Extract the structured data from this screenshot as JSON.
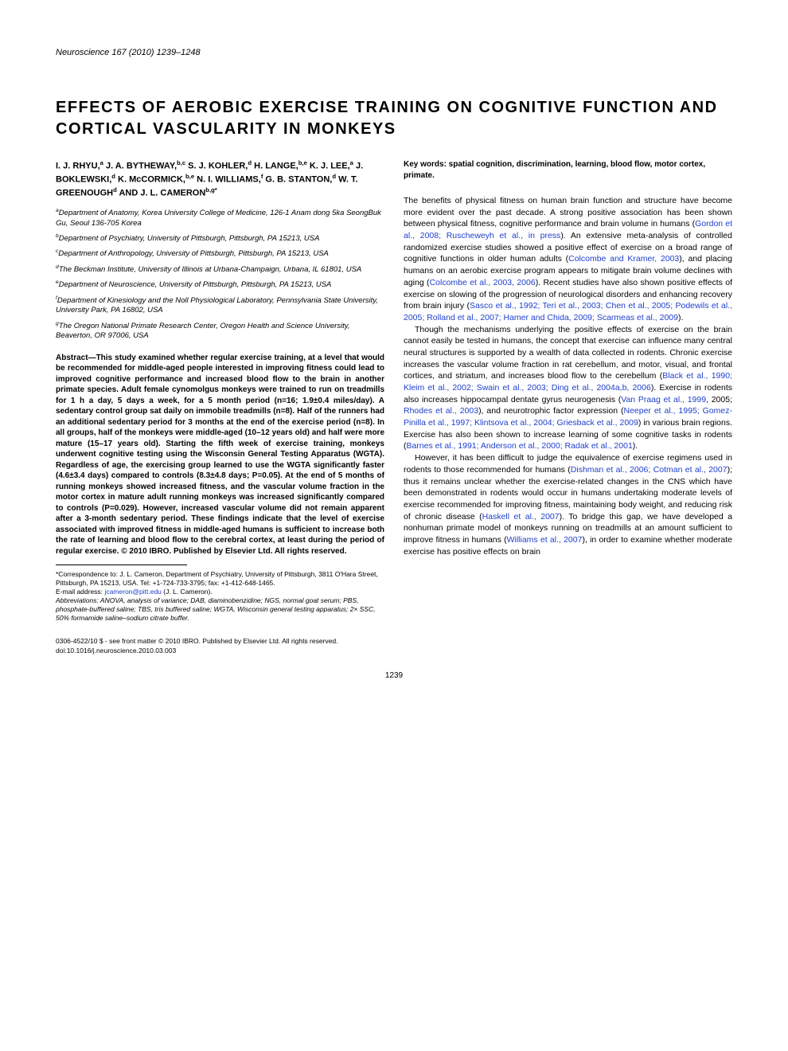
{
  "journal": {
    "name": "Neuroscience",
    "citation": "167 (2010) 1239–1248"
  },
  "title": "EFFECTS OF AEROBIC EXERCISE TRAINING ON COGNITIVE FUNCTION AND CORTICAL VASCULARITY IN MONKEYS",
  "authors_html": "I. J. RHYU,<sup>a</sup> J. A. BYTHEWAY,<sup>b,c</sup> S. J. KOHLER,<sup>d</sup> H. LANGE,<sup>b,e</sup> K. J. LEE,<sup>a</sup> J. BOKLEWSKI,<sup>d</sup> K. McCORMICK,<sup>b,e</sup> N. I. WILLIAMS,<sup>f</sup> G. B. STANTON,<sup>d</sup> W. T. GREENOUGH<sup>d</sup> AND J. L. CAMERON<sup>b,g*</sup>",
  "affiliations": [
    "<sup>a</sup>Department of Anatomy, Korea University College of Medicine, 126-1 Anam dong 5ka SeongBuk Gu, Seoul 136-705 Korea",
    "<sup>b</sup>Department of Psychiatry, University of Pittsburgh, Pittsburgh, PA 15213, USA",
    "<sup>c</sup>Department of Anthropology, University of Pittsburgh, Pittsburgh, PA 15213, USA",
    "<sup>d</sup>The Beckman Institute, University of Illinois at Urbana-Champaign, Urbana, IL 61801, USA",
    "<sup>e</sup>Department of Neuroscience, University of Pittsburgh, Pittsburgh, PA 15213, USA",
    "<sup>f</sup>Department of Kinesiology and the Noll Physiological Laboratory, Pennsylvania State University, University Park, PA 16802, USA",
    "<sup>g</sup>The Oregon National Primate Research Center, Oregon Health and Science University, Beaverton, OR 97006, USA"
  ],
  "abstract": "Abstract—This study examined whether regular exercise training, at a level that would be recommended for middle-aged people interested in improving fitness could lead to improved cognitive performance and increased blood flow to the brain in another primate species. Adult female cynomolgus monkeys were trained to run on treadmills for 1 h a day, 5 days a week, for a 5 month period (n=16; 1.9±0.4 miles/day). A sedentary control group sat daily on immobile treadmills (n=8). Half of the runners had an additional sedentary period for 3 months at the end of the exercise period (n=8). In all groups, half of the monkeys were middle-aged (10–12 years old) and half were more mature (15–17 years old). Starting the fifth week of exercise training, monkeys underwent cognitive testing using the Wisconsin General Testing Apparatus (WGTA). Regardless of age, the exercising group learned to use the WGTA significantly faster (4.6±3.4 days) compared to controls (8.3±4.8 days; P=0.05). At the end of 5 months of running monkeys showed increased fitness, and the vascular volume fraction in the motor cortex in mature adult running monkeys was increased significantly compared to controls (P=0.029). However, increased vascular volume did not remain apparent after a 3-month sedentary period. These findings indicate that the level of exercise associated with improved fitness in middle-aged humans is sufficient to increase both the rate of learning and blood flow to the cerebral cortex, at least during the period of regular exercise. © 2010 IBRO. Published by Elsevier Ltd. All rights reserved.",
  "footnotes": {
    "correspondence": "*Correspondence to: J. L. Cameron, Department of Psychiatry, University of Pittsburgh, 3811 O'Hara Street, Pittsburgh, PA 15213, USA. Tel: +1-724-733-3795; fax: +1-412-648-1465.",
    "email_label": "E-mail address:",
    "email": "jcameron@pitt.edu",
    "email_attribution": "(J. L. Cameron).",
    "abbrev": "Abbreviations: ANOVA, analysis of variance; DAB, diaminobenzidine; NGS, normal goat serum; PBS, phosphate-buffered saline; TBS, tris buffered saline; WGTA, Wisconsin general testing apparatus; 2× SSC, 50% formamide saline–sodium citrate buffer."
  },
  "keywords": "Key words: spatial cognition, discrimination, learning, blood flow, motor cortex, primate.",
  "body_p1": "The benefits of physical fitness on human brain function and structure have become more evident over the past decade. A strong positive association has been shown between physical fitness, cognitive performance and brain volume in humans (<span class=\"ref\">Gordon et al., 2008; Ruscheweyh et al., in press</span>). An extensive meta-analysis of controlled randomized exercise studies showed a positive effect of exercise on a broad range of cognitive functions in older human adults (<span class=\"ref\">Colcombe and Kramer, 2003</span>), and placing humans on an aerobic exercise program appears to mitigate brain volume declines with aging (<span class=\"ref\">Colcombe et al., 2003, 2006</span>). Recent studies have also shown positive effects of exercise on slowing of the progression of neurological disorders and enhancing recovery from brain injury (<span class=\"ref\">Sasco et al., 1992; Teri et al., 2003; Chen et al., 2005; Podewils et al., 2005; Rolland et al., 2007; Hamer and Chida, 2009; Scarmeas et al., 2009</span>).",
  "body_p2": "Though the mechanisms underlying the positive effects of exercise on the brain cannot easily be tested in humans, the concept that exercise can influence many central neural structures is supported by a wealth of data collected in rodents. Chronic exercise increases the vascular volume fraction in rat cerebellum, and motor, visual, and frontal cortices, and striatum, and increases blood flow to the cerebellum (<span class=\"ref\">Black et al., 1990; Kleim et al., 2002; Swain et al., 2003; Ding et al., 2004a,b, 2006</span>). Exercise in rodents also increases hippocampal dentate gyrus neurogenesis (<span class=\"ref\">Van Praag et al., 1999</span>, 2005; <span class=\"ref\">Rhodes et al., 2003</span>), and neurotrophic factor expression (<span class=\"ref\">Neeper et al., 1995; Gomez-Pinilla et al., 1997; Klintsova et al., 2004; Griesback et al., 2009</span>) in various brain regions. Exercise has also been shown to increase learning of some cognitive tasks in rodents (<span class=\"ref\">Barnes et al., 1991; Anderson et al., 2000; Radak et al., 2001</span>).",
  "body_p3": "However, it has been difficult to judge the equivalence of exercise regimens used in rodents to those recommended for humans (<span class=\"ref\">Dishman et al., 2006; Cotman et al., 2007</span>); thus it remains unclear whether the exercise-related changes in the CNS which have been demonstrated in rodents would occur in humans undertaking moderate levels of exercise recommended for improving fitness, maintaining body weight, and reducing risk of chronic disease (<span class=\"ref\">Haskell et al., 2007</span>). To bridge this gap, we have developed a nonhuman primate model of monkeys running on treadmills at an amount sufficient to improve fitness in humans (<span class=\"ref\">Williams et al., 2007</span>), in order to examine whether moderate exercise has positive effects on brain",
  "copyright": "0306-4522/10 $ - see front matter © 2010 IBRO. Published by Elsevier Ltd. All rights reserved.",
  "doi": "doi:10.1016/j.neuroscience.2010.03.003",
  "page_number": "1239",
  "colors": {
    "link": "#2040cc",
    "text": "#000000",
    "background": "#ffffff"
  }
}
